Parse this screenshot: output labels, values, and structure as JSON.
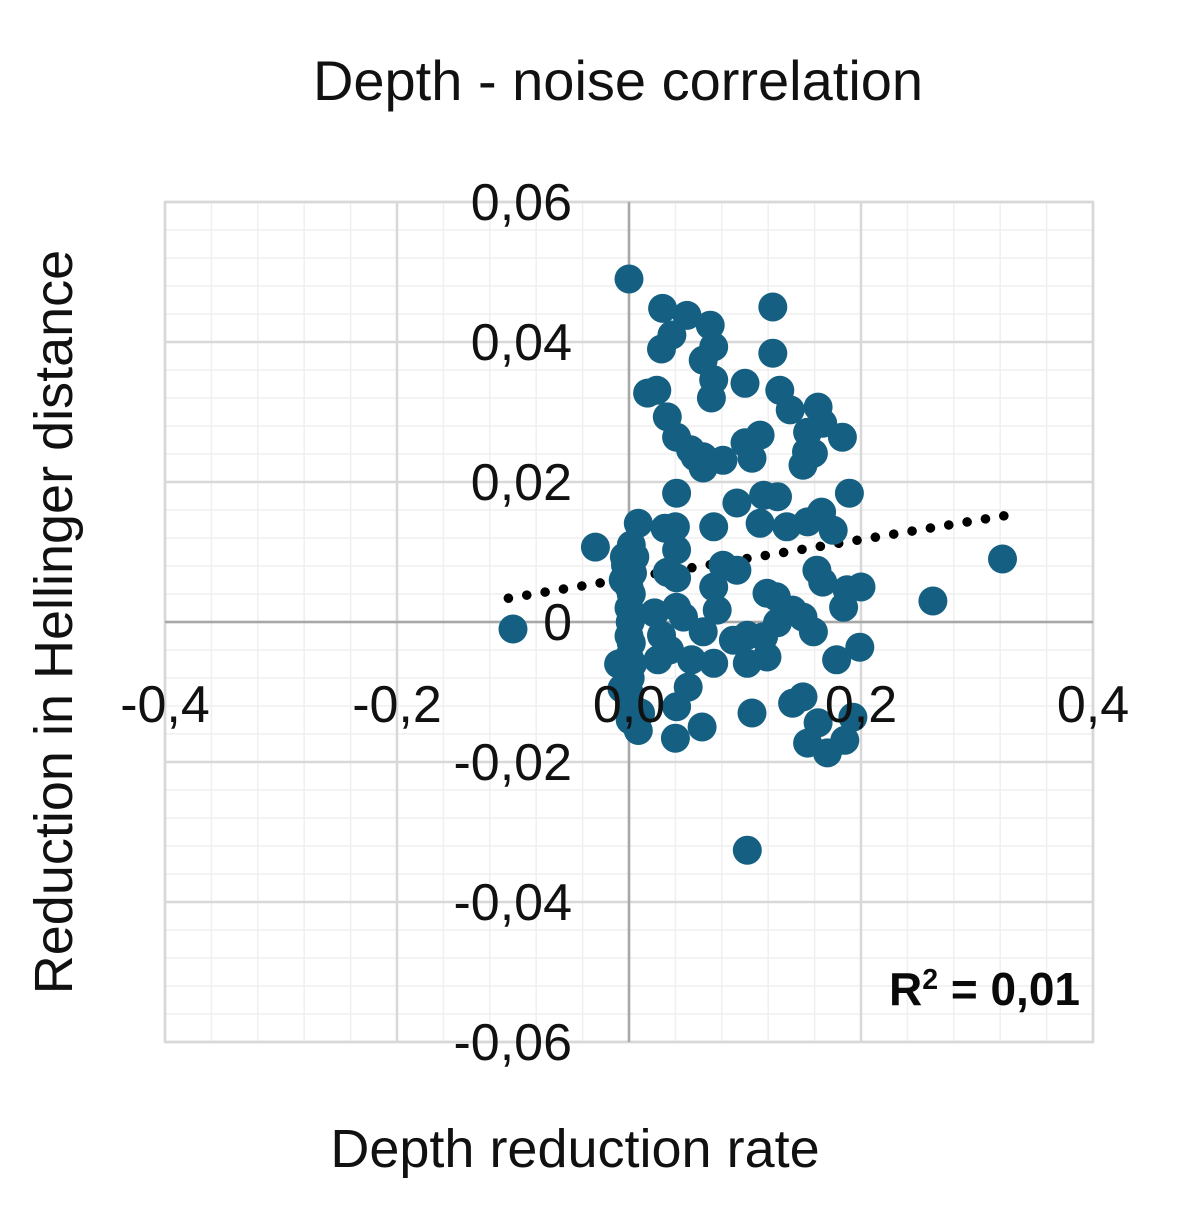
{
  "title": "Depth - noise correlation",
  "chart_data": {
    "type": "scatter",
    "title": "Depth - noise correlation",
    "xlabel": "Depth reduction rate",
    "ylabel": "Reduction in Hellinger distance",
    "xlim": [
      -0.4,
      0.4
    ],
    "ylim": [
      -0.06,
      0.06
    ],
    "x_tick_values": [
      -0.4,
      -0.2,
      0.0,
      0.2,
      0.4
    ],
    "x_tick_labels": [
      "-0,4",
      "-0,2",
      "0,0",
      "0,2",
      "0,4"
    ],
    "y_tick_values": [
      -0.06,
      -0.04,
      -0.02,
      0.0,
      0.02,
      0.04,
      0.06
    ],
    "y_tick_labels": [
      "-0,06",
      "-0,04",
      "-0,02",
      "0",
      "0,02",
      "0,04",
      "0,06"
    ],
    "x_minor_step": 0.04,
    "y_minor_step": 0.004,
    "grid": "on",
    "legend": "none",
    "decimal_separator": ",",
    "r2": {
      "base": "R",
      "sup": "2",
      "rest": " = 0,01"
    },
    "trendline": {
      "style": "dotted",
      "color": "#000000",
      "x1": -0.104,
      "y1": 0.0034,
      "x2": 0.328,
      "y2": 0.0153
    },
    "marker_color": "#156082",
    "marker_radius": 14.5,
    "colors": {
      "minor_grid": "#efefef",
      "major_grid": "#d8d8d8",
      "axis_line": "#a8a8a8",
      "plot_border": "#d8d8d8"
    },
    "points": [
      [
        0.0,
        0.049
      ],
      [
        0.029,
        0.0448
      ],
      [
        0.037,
        0.041
      ],
      [
        0.028,
        0.039
      ],
      [
        0.05,
        0.0438
      ],
      [
        0.07,
        0.0424
      ],
      [
        0.073,
        0.0393
      ],
      [
        0.064,
        0.0374
      ],
      [
        0.124,
        0.045
      ],
      [
        0.124,
        0.0384
      ],
      [
        0.073,
        0.0346
      ],
      [
        0.024,
        0.0331
      ],
      [
        0.016,
        0.0327
      ],
      [
        0.071,
        0.032
      ],
      [
        0.1,
        0.0341
      ],
      [
        0.13,
        0.0331
      ],
      [
        0.139,
        0.0303
      ],
      [
        0.033,
        0.0293
      ],
      [
        0.041,
        0.0264
      ],
      [
        0.163,
        0.0307
      ],
      [
        0.167,
        0.0284
      ],
      [
        0.184,
        0.0264
      ],
      [
        0.154,
        0.0271
      ],
      [
        0.053,
        0.0246
      ],
      [
        0.064,
        0.0236
      ],
      [
        0.1,
        0.0256
      ],
      [
        0.113,
        0.0267
      ],
      [
        0.159,
        0.0241
      ],
      [
        0.15,
        0.0224
      ],
      [
        -0.029,
        0.0107
      ],
      [
        0.008,
        0.0141
      ],
      [
        0.005,
        0.0093
      ],
      [
        -0.003,
        0.0081
      ],
      [
        0.041,
        0.0184
      ],
      [
        0.04,
        0.0136
      ],
      [
        0.041,
        0.0103
      ],
      [
        0.041,
        0.0063
      ],
      [
        0.064,
        0.022
      ],
      [
        0.057,
        0.0236
      ],
      [
        0.073,
        0.0136
      ],
      [
        0.081,
        0.0231
      ],
      [
        0.093,
        0.017
      ],
      [
        0.106,
        0.0234
      ],
      [
        0.113,
        0.0141
      ],
      [
        0.116,
        0.0181
      ],
      [
        0.128,
        0.0179
      ],
      [
        0.136,
        0.0136
      ],
      [
        0.153,
        0.0243
      ],
      [
        0.154,
        0.0143
      ],
      [
        0.166,
        0.0157
      ],
      [
        0.176,
        0.0131
      ],
      [
        0.19,
        0.0184
      ],
      [
        0.162,
        0.0074
      ],
      [
        0.167,
        0.0057
      ],
      [
        0.188,
        0.0046
      ],
      [
        0.073,
        0.005
      ],
      [
        0.081,
        0.0081
      ],
      [
        0.093,
        0.0074
      ],
      [
        0.119,
        0.0041
      ],
      [
        0.127,
        0.0036
      ],
      [
        0.041,
        0.0021
      ],
      [
        0.047,
        0.0007
      ],
      [
        0.064,
        -0.0014
      ],
      [
        0.076,
        0.0017
      ],
      [
        0.09,
        -0.0026
      ],
      [
        0.102,
        -0.0019
      ],
      [
        0.116,
        -0.0021
      ],
      [
        0.128,
        -0.0001
      ],
      [
        0.141,
        0.0017
      ],
      [
        0.15,
        0.0007
      ],
      [
        0.159,
        -0.0014
      ],
      [
        0.185,
        0.0021
      ],
      [
        0.199,
        -0.0036
      ],
      [
        0.028,
        -0.0019
      ],
      [
        0.035,
        -0.004
      ],
      [
        0.054,
        -0.0054
      ],
      [
        0.073,
        -0.0059
      ],
      [
        0.102,
        -0.0059
      ],
      [
        0.119,
        -0.005
      ],
      [
        0.051,
        -0.0093
      ],
      [
        0.041,
        -0.0121
      ],
      [
        0.04,
        -0.0166
      ],
      [
        0.063,
        -0.015
      ],
      [
        0.106,
        -0.013
      ],
      [
        0.141,
        -0.0116
      ],
      [
        0.15,
        -0.0107
      ],
      [
        0.163,
        -0.0144
      ],
      [
        0.154,
        -0.0173
      ],
      [
        0.171,
        -0.0187
      ],
      [
        0.186,
        -0.0169
      ],
      [
        0.193,
        -0.0136
      ],
      [
        0.179,
        -0.0054
      ],
      [
        0.102,
        -0.0326
      ],
      [
        0.322,
        0.009
      ],
      [
        0.262,
        0.003
      ],
      [
        0.2,
        0.005
      ],
      [
        -0.1,
        -0.001
      ],
      [
        0.022,
        0.0013
      ],
      [
        0.025,
        -0.0054
      ],
      [
        0.031,
        0.0134
      ],
      [
        0.033,
        0.0071
      ],
      [
        0.002,
        0.011
      ],
      [
        0.0,
        0.009
      ],
      [
        0.003,
        0.007
      ],
      [
        0.0,
        0.005
      ],
      [
        0.002,
        0.004
      ],
      [
        0.0,
        0.002
      ],
      [
        0.003,
        0.001
      ],
      [
        0.001,
        0.0
      ],
      [
        0.0,
        -0.002
      ],
      [
        0.002,
        -0.003
      ],
      [
        0.0,
        -0.005
      ],
      [
        0.003,
        -0.006
      ],
      [
        0.001,
        -0.008
      ],
      [
        0.0,
        -0.01
      ],
      [
        0.002,
        -0.012
      ],
      [
        0.001,
        -0.014
      ],
      [
        -0.004,
        0.0093
      ],
      [
        -0.005,
        0.006
      ],
      [
        0.008,
        -0.0155
      ],
      [
        0.01,
        -0.013
      ],
      [
        -0.009,
        -0.006
      ],
      [
        -0.006,
        -0.0095
      ]
    ]
  }
}
